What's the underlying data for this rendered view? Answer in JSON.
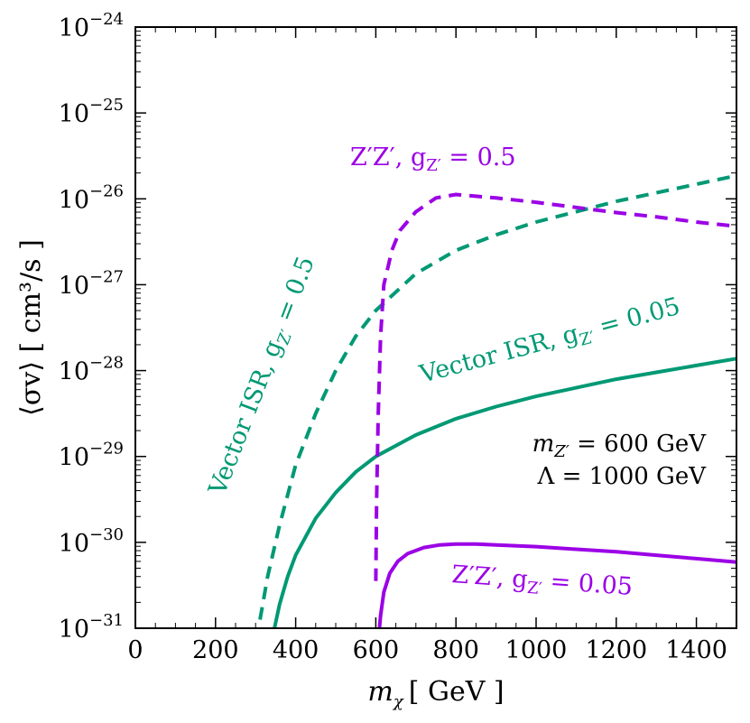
{
  "chart_data": {
    "type": "line",
    "xlabel_var": "m",
    "xlabel_sub": "χ",
    "xlabel_unit": "[ GeV ]",
    "ylabel": "⟨σv⟩ [ cm³/s ]",
    "xlim": [
      0,
      1500
    ],
    "ylim_log10": [
      -31,
      -24
    ],
    "x_ticks": [
      0,
      200,
      400,
      600,
      800,
      1000,
      1200,
      1400
    ],
    "y_ticks": [
      {
        "exp": -31,
        "base": "10",
        "sup": "−31"
      },
      {
        "exp": -30,
        "base": "10",
        "sup": "−30"
      },
      {
        "exp": -29,
        "base": "10",
        "sup": "−29"
      },
      {
        "exp": -28,
        "base": "10",
        "sup": "−28"
      },
      {
        "exp": -27,
        "base": "10",
        "sup": "−27"
      },
      {
        "exp": -26,
        "base": "10",
        "sup": "−26"
      },
      {
        "exp": -25,
        "base": "10",
        "sup": "−25"
      },
      {
        "exp": -24,
        "base": "10",
        "sup": "−24"
      }
    ],
    "series": [
      {
        "name": "Vector ISR, gZ' = 0.5",
        "color": "#009974",
        "dash": true,
        "x": [
          311,
          330,
          360,
          400,
          450,
          500,
          550,
          600,
          700,
          800,
          900,
          1000,
          1100,
          1200,
          1300,
          1400,
          1500
        ],
        "y": [
          -30.9,
          -30.4,
          -29.8,
          -29.1,
          -28.5,
          -28.0,
          -27.6,
          -27.3,
          -26.87,
          -26.6,
          -26.42,
          -26.27,
          -26.15,
          -26.03,
          -25.93,
          -25.83,
          -25.73
        ]
      },
      {
        "name": "Vector ISR, gZ' = 0.05",
        "color": "#009974",
        "dash": false,
        "x": [
          347,
          360,
          380,
          400,
          450,
          500,
          550,
          600,
          700,
          800,
          900,
          1000,
          1100,
          1200,
          1300,
          1400,
          1500
        ],
        "y": [
          -31.0,
          -30.72,
          -30.4,
          -30.15,
          -29.72,
          -29.42,
          -29.18,
          -29.0,
          -28.75,
          -28.56,
          -28.42,
          -28.3,
          -28.2,
          -28.1,
          -28.02,
          -27.94,
          -27.86
        ]
      },
      {
        "name": "Z'Z', gZ' = 0.5",
        "color": "#9b00e6",
        "dash": true,
        "x": [
          600,
          602,
          606,
          612,
          620,
          640,
          660,
          700,
          750,
          800,
          850,
          900,
          1000,
          1100,
          1200,
          1300,
          1400,
          1500
        ],
        "y": [
          -30.45,
          -29.5,
          -28.5,
          -27.6,
          -27.0,
          -26.6,
          -26.37,
          -26.15,
          -25.99,
          -25.95,
          -25.97,
          -25.99,
          -26.04,
          -26.1,
          -26.16,
          -26.21,
          -26.27,
          -26.32
        ]
      },
      {
        "name": "Z'Z', gZ' = 0.05",
        "color": "#9b00e6",
        "dash": false,
        "x": [
          609,
          612,
          620,
          635,
          655,
          680,
          720,
          760,
          800,
          850,
          900,
          1000,
          1100,
          1200,
          1300,
          1400,
          1500
        ],
        "y": [
          -31.0,
          -30.85,
          -30.58,
          -30.36,
          -30.22,
          -30.13,
          -30.06,
          -30.03,
          -30.02,
          -30.02,
          -30.03,
          -30.05,
          -30.08,
          -30.11,
          -30.15,
          -30.19,
          -30.23
        ]
      }
    ],
    "labels": {
      "zz_05": {
        "main": "Z′Z′, g",
        "sub": "Z′",
        "rest": " = 0.5"
      },
      "zz_005": {
        "main": "Z′Z′, g",
        "sub": "Z′",
        "rest": " = 0.05"
      },
      "isr_05": {
        "main": "Vector ISR, g",
        "sub": "Z′",
        "rest": " = 0.5"
      },
      "isr_005": {
        "main": "Vector ISR, g",
        "sub": "Z′",
        "rest": " = 0.05"
      }
    },
    "info_lines": [
      {
        "var": "m",
        "sub": "Z′",
        "rest": " = 600 GeV"
      },
      {
        "var": "Λ",
        "sub": "",
        "rest": " = 1000 GeV"
      }
    ]
  }
}
